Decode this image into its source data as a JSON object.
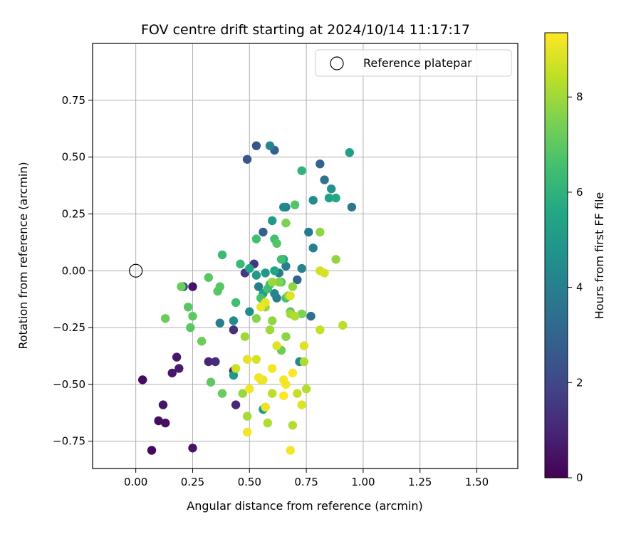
{
  "chart_data": {
    "type": "scatter",
    "title": "FOV centre drift starting at 2024/10/14 11:17:17",
    "xlabel": "Angular distance from reference (arcmin)",
    "ylabel": "Rotation from reference (arcmin)",
    "xlim": [
      -0.19,
      1.68
    ],
    "ylim": [
      -0.87,
      1.0
    ],
    "xticks": [
      0.0,
      0.25,
      0.5,
      0.75,
      1.0,
      1.25,
      1.5
    ],
    "xtick_labels": [
      "0.00",
      "0.25",
      "0.50",
      "0.75",
      "1.00",
      "1.25",
      "1.50"
    ],
    "yticks": [
      -0.75,
      -0.5,
      -0.25,
      0.0,
      0.25,
      0.5,
      0.75
    ],
    "ytick_labels": [
      "−0.75",
      "−0.50",
      "−0.25",
      "0.00",
      "0.25",
      "0.50",
      "0.75"
    ],
    "grid": true,
    "legend": {
      "placement": "top-right",
      "entries": [
        "Reference platepar"
      ]
    },
    "reference": {
      "x": 0.0,
      "y": 0.0
    },
    "colorbar": {
      "label": "Hours from first FF file",
      "colormap": "viridis",
      "range": [
        0,
        9.35
      ],
      "ticks": [
        0,
        2,
        4,
        6,
        8
      ],
      "tick_labels": [
        "0",
        "2",
        "4",
        "6",
        "8"
      ]
    },
    "points": [
      {
        "x": 0.07,
        "y": -0.79,
        "c": 0.2
      },
      {
        "x": 0.1,
        "y": -0.66,
        "c": 0.3
      },
      {
        "x": 0.13,
        "y": -0.67,
        "c": 0.4
      },
      {
        "x": 0.12,
        "y": -0.59,
        "c": 0.5
      },
      {
        "x": 0.03,
        "y": -0.48,
        "c": 0.3
      },
      {
        "x": 0.16,
        "y": -0.45,
        "c": 0.6
      },
      {
        "x": 0.19,
        "y": -0.43,
        "c": 0.7
      },
      {
        "x": 0.18,
        "y": -0.38,
        "c": 0.6
      },
      {
        "x": 0.25,
        "y": -0.78,
        "c": 0.5
      },
      {
        "x": 0.25,
        "y": -0.07,
        "c": 0.5
      },
      {
        "x": 0.21,
        "y": -0.07,
        "c": 2.5
      },
      {
        "x": 0.32,
        "y": -0.4,
        "c": 1.0
      },
      {
        "x": 0.35,
        "y": -0.4,
        "c": 1.2
      },
      {
        "x": 0.43,
        "y": -0.44,
        "c": 1.2
      },
      {
        "x": 0.44,
        "y": -0.59,
        "c": 1.0
      },
      {
        "x": 0.43,
        "y": -0.26,
        "c": 1.3
      },
      {
        "x": 0.48,
        "y": -0.01,
        "c": 1.5
      },
      {
        "x": 0.52,
        "y": 0.03,
        "c": 1.5
      },
      {
        "x": 0.49,
        "y": 0.49,
        "c": 2.5
      },
      {
        "x": 0.53,
        "y": 0.55,
        "c": 2.5
      },
      {
        "x": 0.61,
        "y": 0.53,
        "c": 2.8
      },
      {
        "x": 0.56,
        "y": 0.17,
        "c": 2.8
      },
      {
        "x": 0.81,
        "y": 0.47,
        "c": 3.0
      },
      {
        "x": 0.83,
        "y": 0.4,
        "c": 3.5
      },
      {
        "x": 0.95,
        "y": 0.28,
        "c": 3.7
      },
      {
        "x": 0.66,
        "y": 0.28,
        "c": 4.0
      },
      {
        "x": 0.59,
        "y": 0.55,
        "c": 4.2
      },
      {
        "x": 0.78,
        "y": 0.31,
        "c": 4.5
      },
      {
        "x": 0.86,
        "y": 0.36,
        "c": 4.8
      },
      {
        "x": 0.94,
        "y": 0.52,
        "c": 5.2
      },
      {
        "x": 0.85,
        "y": 0.32,
        "c": 5.3
      },
      {
        "x": 0.88,
        "y": 0.32,
        "c": 5.6
      },
      {
        "x": 0.65,
        "y": 0.28,
        "c": 4.3
      },
      {
        "x": 0.76,
        "y": 0.17,
        "c": 3.8
      },
      {
        "x": 0.78,
        "y": 0.1,
        "c": 4.0
      },
      {
        "x": 0.73,
        "y": 0.01,
        "c": 4.2
      },
      {
        "x": 0.77,
        "y": -0.2,
        "c": 3.5
      },
      {
        "x": 0.71,
        "y": -0.04,
        "c": 3.0
      },
      {
        "x": 0.66,
        "y": 0.02,
        "c": 4.0
      },
      {
        "x": 0.63,
        "y": -0.01,
        "c": 3.8
      },
      {
        "x": 0.61,
        "y": -0.1,
        "c": 4.2
      },
      {
        "x": 0.62,
        "y": -0.12,
        "c": 4.0
      },
      {
        "x": 0.54,
        "y": -0.07,
        "c": 4.0
      },
      {
        "x": 0.5,
        "y": -0.18,
        "c": 4.5
      },
      {
        "x": 0.37,
        "y": -0.23,
        "c": 4.0
      },
      {
        "x": 0.43,
        "y": -0.22,
        "c": 4.5
      },
      {
        "x": 0.43,
        "y": -0.46,
        "c": 5.0
      },
      {
        "x": 0.56,
        "y": -0.61,
        "c": 5.0
      },
      {
        "x": 0.72,
        "y": -0.4,
        "c": 4.5
      },
      {
        "x": 0.6,
        "y": 0.22,
        "c": 5.0
      },
      {
        "x": 0.57,
        "y": -0.01,
        "c": 5.0
      },
      {
        "x": 0.53,
        "y": -0.02,
        "c": 5.0
      },
      {
        "x": 0.56,
        "y": -0.1,
        "c": 5.2
      },
      {
        "x": 0.61,
        "y": 0.0,
        "c": 5.5
      },
      {
        "x": 0.65,
        "y": 0.05,
        "c": 5.5
      },
      {
        "x": 0.5,
        "y": 0.01,
        "c": 5.5
      },
      {
        "x": 0.73,
        "y": 0.44,
        "c": 6.0
      },
      {
        "x": 0.38,
        "y": 0.07,
        "c": 6.3
      },
      {
        "x": 0.46,
        "y": 0.03,
        "c": 6.3
      },
      {
        "x": 0.53,
        "y": 0.14,
        "c": 6.5
      },
      {
        "x": 0.61,
        "y": 0.14,
        "c": 6.5
      },
      {
        "x": 0.62,
        "y": 0.12,
        "c": 6.8
      },
      {
        "x": 0.64,
        "y": 0.05,
        "c": 6.5
      },
      {
        "x": 0.7,
        "y": 0.29,
        "c": 6.8
      },
      {
        "x": 0.59,
        "y": -0.06,
        "c": 6.5
      },
      {
        "x": 0.58,
        "y": -0.08,
        "c": 6.5
      },
      {
        "x": 0.64,
        "y": -0.05,
        "c": 6.8
      },
      {
        "x": 0.66,
        "y": -0.12,
        "c": 6.6
      },
      {
        "x": 0.68,
        "y": -0.18,
        "c": 6.9
      },
      {
        "x": 0.55,
        "y": -0.12,
        "c": 6.6
      },
      {
        "x": 0.32,
        "y": -0.03,
        "c": 6.9
      },
      {
        "x": 0.36,
        "y": -0.09,
        "c": 6.9
      },
      {
        "x": 0.37,
        "y": -0.07,
        "c": 6.9
      },
      {
        "x": 0.2,
        "y": -0.07,
        "c": 7.2
      },
      {
        "x": 0.23,
        "y": -0.16,
        "c": 6.9
      },
      {
        "x": 0.25,
        "y": -0.2,
        "c": 7.0
      },
      {
        "x": 0.24,
        "y": -0.25,
        "c": 6.9
      },
      {
        "x": 0.13,
        "y": -0.21,
        "c": 7.2
      },
      {
        "x": 0.29,
        "y": -0.31,
        "c": 7.2
      },
      {
        "x": 0.33,
        "y": -0.49,
        "c": 7.0
      },
      {
        "x": 0.38,
        "y": -0.54,
        "c": 7.2
      },
      {
        "x": 0.44,
        "y": -0.14,
        "c": 6.5
      },
      {
        "x": 0.57,
        "y": -0.6,
        "c": 6.8
      },
      {
        "x": 0.64,
        "y": -0.35,
        "c": 7.2
      },
      {
        "x": 0.73,
        "y": -0.19,
        "c": 7.5
      },
      {
        "x": 0.66,
        "y": 0.21,
        "c": 7.5
      },
      {
        "x": 0.81,
        "y": 0.17,
        "c": 7.8
      },
      {
        "x": 0.88,
        "y": 0.05,
        "c": 7.8
      },
      {
        "x": 0.67,
        "y": -0.11,
        "c": 7.6
      },
      {
        "x": 0.69,
        "y": -0.07,
        "c": 7.8
      },
      {
        "x": 0.63,
        "y": -0.05,
        "c": 7.6
      },
      {
        "x": 0.6,
        "y": -0.05,
        "c": 7.9
      },
      {
        "x": 0.57,
        "y": -0.16,
        "c": 7.8
      },
      {
        "x": 0.53,
        "y": -0.21,
        "c": 7.6
      },
      {
        "x": 0.6,
        "y": -0.22,
        "c": 7.8
      },
      {
        "x": 0.59,
        "y": -0.26,
        "c": 8.0
      },
      {
        "x": 0.66,
        "y": -0.29,
        "c": 7.7
      },
      {
        "x": 0.68,
        "y": -0.19,
        "c": 8.0
      },
      {
        "x": 0.7,
        "y": -0.2,
        "c": 8.2
      },
      {
        "x": 0.74,
        "y": -0.4,
        "c": 8.2
      },
      {
        "x": 0.48,
        "y": -0.29,
        "c": 8.0
      },
      {
        "x": 0.47,
        "y": -0.54,
        "c": 7.9
      },
      {
        "x": 0.49,
        "y": -0.64,
        "c": 8.1
      },
      {
        "x": 0.58,
        "y": -0.67,
        "c": 8.2
      },
      {
        "x": 0.69,
        "y": -0.68,
        "c": 8.3
      },
      {
        "x": 0.75,
        "y": -0.52,
        "c": 8.3
      },
      {
        "x": 0.6,
        "y": -0.54,
        "c": 8.4
      },
      {
        "x": 0.71,
        "y": -0.54,
        "c": 8.5
      },
      {
        "x": 0.81,
        "y": -0.26,
        "c": 8.5
      },
      {
        "x": 0.91,
        "y": -0.24,
        "c": 8.4
      },
      {
        "x": 0.81,
        "y": 0.0,
        "c": 8.7
      },
      {
        "x": 0.83,
        "y": -0.01,
        "c": 8.8
      },
      {
        "x": 0.74,
        "y": -0.33,
        "c": 8.9
      },
      {
        "x": 0.73,
        "y": -0.59,
        "c": 8.9
      },
      {
        "x": 0.68,
        "y": -0.79,
        "c": 9.2
      },
      {
        "x": 0.49,
        "y": -0.71,
        "c": 9.2
      },
      {
        "x": 0.57,
        "y": -0.6,
        "c": 9.1
      },
      {
        "x": 0.55,
        "y": -0.48,
        "c": 9.0
      },
      {
        "x": 0.54,
        "y": -0.47,
        "c": 9.2
      },
      {
        "x": 0.56,
        "y": -0.48,
        "c": 9.1
      },
      {
        "x": 0.5,
        "y": -0.52,
        "c": 9.2
      },
      {
        "x": 0.53,
        "y": -0.39,
        "c": 8.8
      },
      {
        "x": 0.49,
        "y": -0.39,
        "c": 9.0
      },
      {
        "x": 0.44,
        "y": -0.43,
        "c": 8.6
      },
      {
        "x": 0.6,
        "y": -0.43,
        "c": 9.2
      },
      {
        "x": 0.65,
        "y": -0.48,
        "c": 9.2
      },
      {
        "x": 0.66,
        "y": -0.5,
        "c": 9.2
      },
      {
        "x": 0.69,
        "y": -0.45,
        "c": 9.3
      },
      {
        "x": 0.65,
        "y": -0.55,
        "c": 9.3
      },
      {
        "x": 0.55,
        "y": -0.16,
        "c": 9.1
      },
      {
        "x": 0.57,
        "y": -0.14,
        "c": 9.0
      },
      {
        "x": 0.68,
        "y": -0.11,
        "c": 8.9
      },
      {
        "x": 0.62,
        "y": -0.33,
        "c": 8.9
      }
    ]
  }
}
